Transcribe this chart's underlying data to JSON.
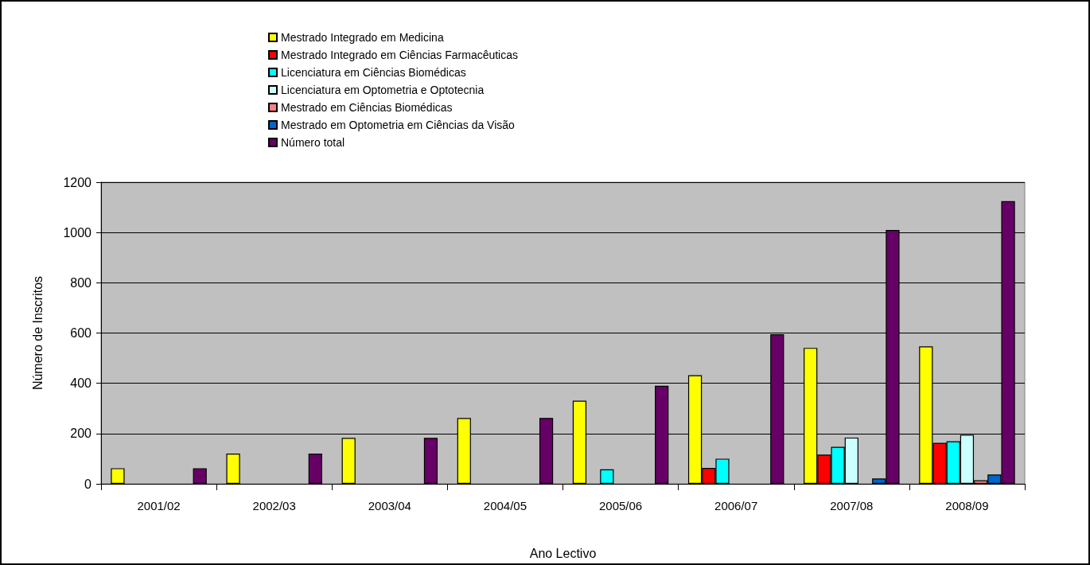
{
  "chart_data": {
    "type": "bar",
    "categories": [
      "2001/02",
      "2002/03",
      "2003/04",
      "2004/05",
      "2005/06",
      "2006/07",
      "2007/08",
      "2008/09"
    ],
    "series": [
      {
        "name": "Mestrado Integrado em Medicina",
        "color": "#ffff00",
        "values": [
          62,
          120,
          183,
          262,
          331,
          432,
          541,
          547
        ]
      },
      {
        "name": "Mestrado Integrado em Ciências Farmacêuticas",
        "color": "#ff0000",
        "values": [
          null,
          null,
          null,
          null,
          null,
          63,
          116,
          163
        ]
      },
      {
        "name": "Licenciatura em Ciências Biomédicas",
        "color": "#00ffff",
        "values": [
          null,
          null,
          null,
          null,
          58,
          100,
          147,
          169
        ]
      },
      {
        "name": "Licenciatura em Optometria e Optotecnia",
        "color": "#ccffff",
        "values": [
          null,
          null,
          null,
          null,
          null,
          null,
          184,
          195
        ]
      },
      {
        "name": "Mestrado em Ciências Biomédicas",
        "color": "#ff8080",
        "values": [
          null,
          null,
          null,
          null,
          null,
          null,
          null,
          14
        ]
      },
      {
        "name": "Mestrado em Optometria em Ciências da Visão",
        "color": "#0066cc",
        "values": [
          null,
          null,
          null,
          null,
          null,
          null,
          21,
          37
        ]
      },
      {
        "name": "Número total",
        "color": "#660066",
        "values": [
          62,
          120,
          183,
          262,
          390,
          595,
          1010,
          1125
        ]
      }
    ],
    "xlabel": "Ano Lectivo",
    "ylabel": "Número de Inscritos",
    "ylim": [
      0,
      1200
    ],
    "yticks": [
      0,
      200,
      400,
      600,
      800,
      1000,
      1200
    ],
    "grid": "y",
    "legend": "top"
  }
}
